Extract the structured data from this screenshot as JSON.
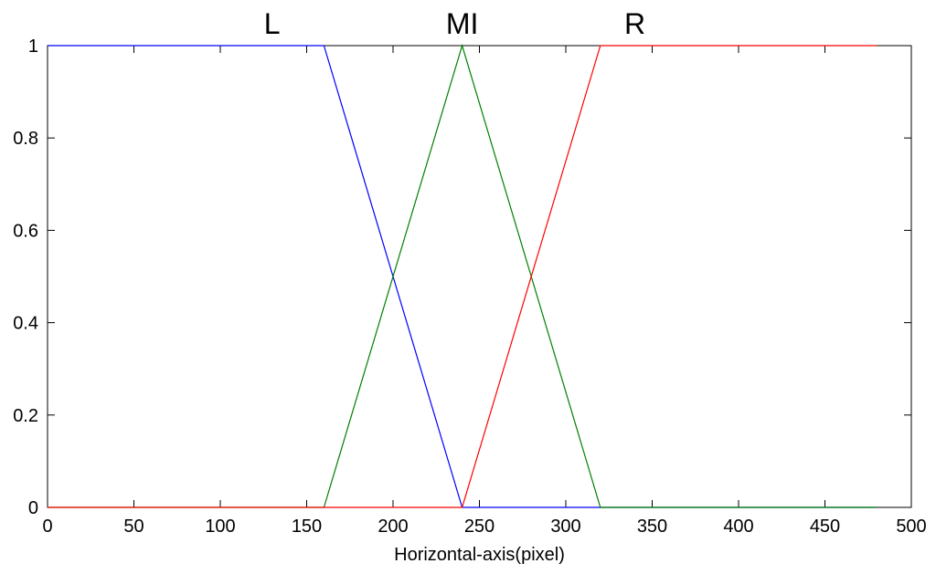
{
  "chart_data": {
    "type": "line",
    "title": "",
    "xlabel": "Horizontal-axis(pixel)",
    "ylabel": "",
    "xlim": [
      0,
      500
    ],
    "ylim": [
      0,
      1
    ],
    "xticks": [
      0,
      50,
      100,
      150,
      200,
      250,
      300,
      350,
      400,
      450,
      500
    ],
    "yticks": [
      0,
      0.2,
      0.4,
      0.6,
      0.8,
      1
    ],
    "xtick_labels": [
      "0",
      "50",
      "100",
      "150",
      "200",
      "250",
      "300",
      "350",
      "400",
      "450",
      "500"
    ],
    "ytick_labels": [
      "0",
      "0.2",
      "0.4",
      "0.6",
      "0.8",
      "1"
    ],
    "grid": false,
    "legend": "none",
    "series": [
      {
        "name": "L",
        "color": "#0000ff",
        "x": [
          0,
          160,
          240,
          480
        ],
        "y": [
          1,
          1,
          0,
          0
        ]
      },
      {
        "name": "MI",
        "color": "#008000",
        "x": [
          0,
          160,
          240,
          320,
          480
        ],
        "y": [
          0,
          0,
          1,
          0,
          0
        ]
      },
      {
        "name": "R",
        "color": "#ff0000",
        "x": [
          0,
          240,
          320,
          480
        ],
        "y": [
          0,
          0,
          1,
          1
        ]
      }
    ],
    "annotations": [
      {
        "text": "L",
        "series": "L",
        "x": 130
      },
      {
        "text": "MI",
        "series": "MI",
        "x": 240
      },
      {
        "text": "R",
        "series": "R",
        "x": 340
      }
    ]
  }
}
